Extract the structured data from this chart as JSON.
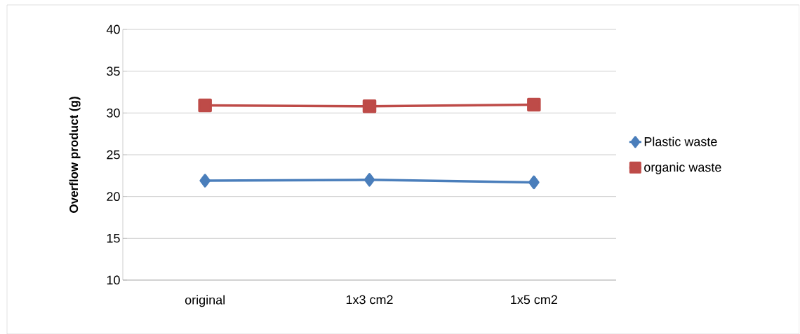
{
  "chart_data": {
    "type": "line",
    "ylabel": "Overflow product (g)",
    "categories": [
      "original",
      "1x3 cm2",
      "1x5 cm2"
    ],
    "series": [
      {
        "name": "Plastic waste",
        "color": "#4a7ebb",
        "values": [
          21.9,
          22.0,
          21.7
        ],
        "marker": "diamond"
      },
      {
        "name": "organic waste",
        "color": "#be4b48",
        "values": [
          30.9,
          30.8,
          31.0
        ],
        "marker": "square"
      }
    ],
    "ylim": [
      10,
      40
    ],
    "yticks": [
      10,
      15,
      20,
      25,
      30,
      35,
      40
    ],
    "grid": "y",
    "legend": "right"
  }
}
